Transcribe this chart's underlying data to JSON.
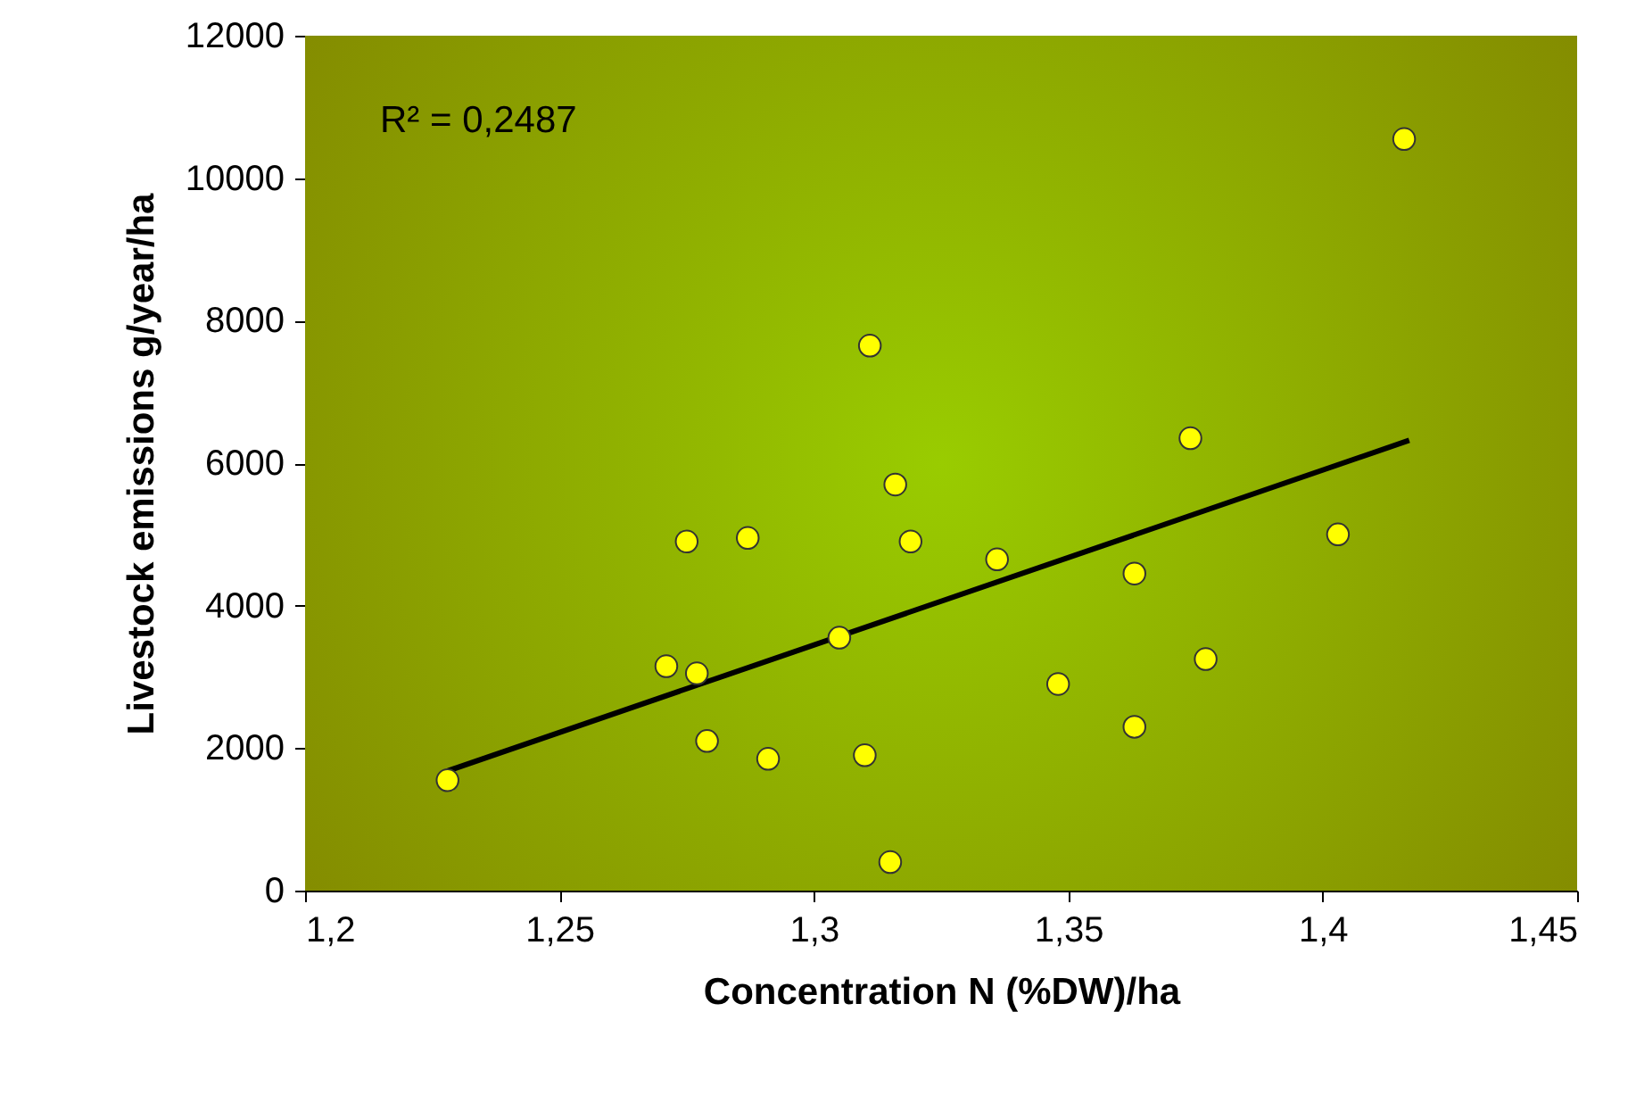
{
  "chart_data": {
    "type": "scatter",
    "xlabel": "Concentration N (%DW)/ha",
    "ylabel": "Livestock emissions g/year/ha",
    "annotations": [
      "R² = 0,2487"
    ],
    "xlim": [
      1.2,
      1.45
    ],
    "xticks": [
      {
        "value": 1.2,
        "label": "1,2"
      },
      {
        "value": 1.25,
        "label": "1,25"
      },
      {
        "value": 1.3,
        "label": "1,3"
      },
      {
        "value": 1.35,
        "label": "1,35"
      },
      {
        "value": 1.4,
        "label": "1,4"
      },
      {
        "value": 1.45,
        "label": "1,45"
      }
    ],
    "ylim": [
      0,
      12000
    ],
    "yticks": [
      0,
      2000,
      4000,
      6000,
      8000,
      10000,
      12000
    ],
    "series": [
      {
        "color": "#ffff00",
        "marker": "circle",
        "x": [
          1.228,
          1.271,
          1.275,
          1.279,
          1.277,
          1.287,
          1.291,
          1.305,
          1.311,
          1.31,
          1.316,
          1.319,
          1.315,
          1.336,
          1.348,
          1.363,
          1.363,
          1.374,
          1.377,
          1.403,
          1.416
        ],
        "values": [
          1550,
          3150,
          4900,
          2100,
          3050,
          4950,
          1850,
          3550,
          7650,
          1900,
          5700,
          4900,
          400,
          4650,
          2900,
          4450,
          2300,
          6350,
          3250,
          5000,
          10550
        ]
      },
      {
        "type": "line",
        "marker": "none",
        "color": "#000000",
        "x": [
          1.228,
          1.417
        ],
        "values": [
          1680,
          6320
        ]
      }
    ]
  }
}
